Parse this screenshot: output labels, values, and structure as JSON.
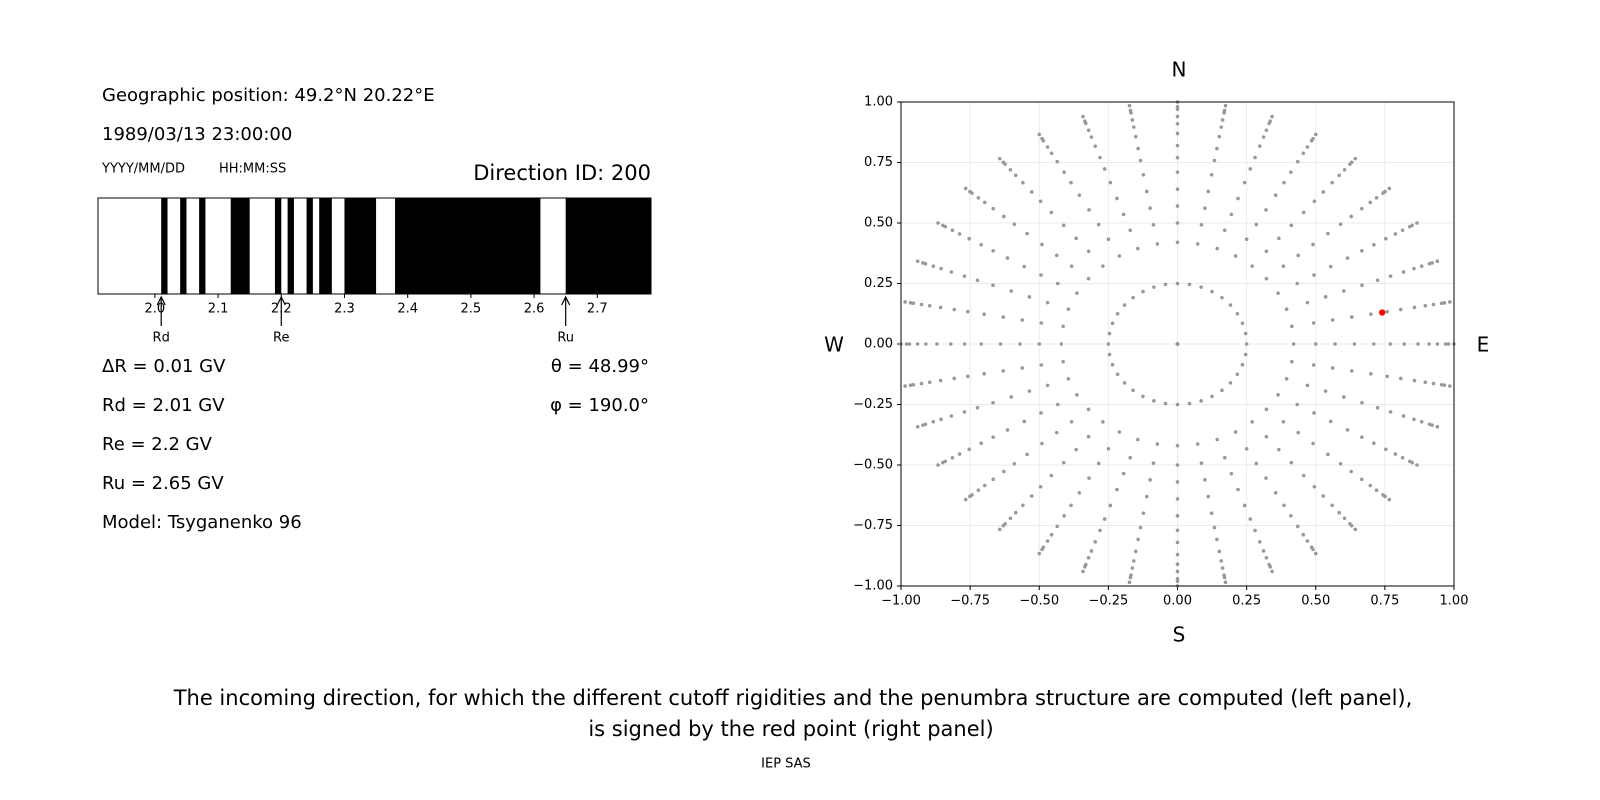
{
  "info": {
    "position": "Geographic position: 49.2°N 20.22°E",
    "datetime": "1989/03/13 23:00:00",
    "date_format": "YYYY/MM/DD",
    "time_format": "HH:MM:SS",
    "direction": "Direction ID: 200",
    "lines": [
      "ΔR = 0.01 GV",
      "Rd = 2.01 GV",
      "Re = 2.2 GV",
      "Ru = 2.65 GV",
      "Model: Tsyganenko 96"
    ],
    "angles": [
      "θ = 48.99°",
      "φ = 190.0°"
    ]
  },
  "chart_data": [
    {
      "type": "penumbra",
      "xlim": [
        1.91,
        2.785
      ],
      "xticks": [
        {
          "value": 2.0,
          "label": "2.0"
        },
        2.1,
        2.2,
        2.3,
        2.4,
        2.5,
        2.6,
        2.7
      ],
      "forbidden": [
        [
          2.01,
          2.02
        ],
        [
          2.04,
          2.05
        ],
        [
          2.07,
          2.08
        ],
        [
          2.12,
          2.15
        ],
        [
          2.19,
          2.2
        ],
        [
          2.21,
          2.22
        ],
        [
          2.24,
          2.25
        ],
        [
          2.26,
          2.28
        ],
        [
          2.3,
          2.35
        ],
        [
          2.38,
          2.61
        ],
        [
          2.65,
          2.785
        ]
      ],
      "color": "#000000",
      "markers": [
        {
          "label": "Rd",
          "value": 2.01
        },
        {
          "label": "Re",
          "value": 2.2
        },
        {
          "label": "Ru",
          "value": 2.65
        }
      ]
    },
    {
      "type": "sky",
      "xlim": [
        -1,
        1
      ],
      "ylim": [
        -1,
        1
      ],
      "xticks": [
        {
          "value": -1,
          "label": "−1.00"
        },
        {
          "value": -0.75,
          "label": "−0.75"
        },
        {
          "value": -0.5,
          "label": "−0.50"
        },
        {
          "value": -0.25,
          "label": "−0.25"
        },
        {
          "value": 0,
          "label": "0.00"
        },
        0.25,
        {
          "value": 0.5,
          "label": "0.50"
        },
        0.75,
        {
          "value": 1,
          "label": "1.00"
        }
      ],
      "yticks": [
        {
          "value": -1,
          "label": "−1.00"
        },
        {
          "value": -0.75,
          "label": "−0.75"
        },
        {
          "value": -0.5,
          "label": "−0.50"
        },
        {
          "value": -0.25,
          "label": "−0.25"
        },
        {
          "value": 0,
          "label": "0.00"
        },
        0.25,
        {
          "value": 0.5,
          "label": "0.50"
        },
        0.75,
        {
          "value": 1,
          "label": "1.00"
        }
      ],
      "grid": true,
      "color": "#999999",
      "radii": [
        0,
        0.25,
        0.42,
        0.5,
        0.57,
        0.64,
        0.71,
        0.77,
        0.82,
        0.87,
        0.91,
        0.94,
        0.97,
        0.98,
        1.0
      ],
      "azimuths": [
        0,
        10,
        20,
        30,
        40,
        50,
        60,
        70,
        80,
        90,
        100,
        110,
        120,
        130,
        140,
        150,
        160,
        170,
        180,
        190,
        200,
        210,
        220,
        230,
        240,
        250,
        260,
        270,
        280,
        290,
        300,
        310,
        320,
        330,
        340,
        350
      ],
      "highlight": {
        "x": 0.74,
        "y": 0.13,
        "color": "#ff0000"
      },
      "directions": {
        "north": "N",
        "south": "S",
        "west": "W",
        "east": "E"
      }
    }
  ],
  "caption": [
    "The incoming direction, for which the different cutoff rigidities and the penumbra structure are computed (left panel),",
    "is signed by the red point (right panel)"
  ],
  "footer": "IEP SAS"
}
